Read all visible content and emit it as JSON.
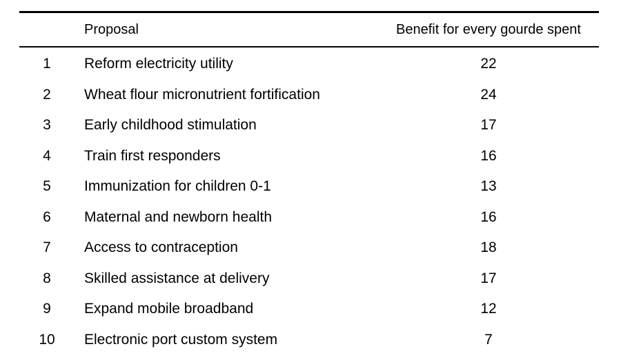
{
  "table": {
    "headers": {
      "number": "",
      "proposal": "Proposal",
      "benefit": "Benefit for every gourde spent"
    },
    "rows": [
      {
        "number": "1",
        "proposal": "Reform electricity utility",
        "benefit": "22"
      },
      {
        "number": "2",
        "proposal": "Wheat flour micronutrient fortification",
        "benefit": "24"
      },
      {
        "number": "3",
        "proposal": "Early childhood stimulation",
        "benefit": "17"
      },
      {
        "number": "4",
        "proposal": "Train first responders",
        "benefit": "16"
      },
      {
        "number": "5",
        "proposal": "Immunization for children 0-1",
        "benefit": "13"
      },
      {
        "number": "6",
        "proposal": "Maternal and newborn health",
        "benefit": "16"
      },
      {
        "number": "7",
        "proposal": "Access to contraception",
        "benefit": "18"
      },
      {
        "number": "8",
        "proposal": "Skilled assistance at delivery",
        "benefit": "17"
      },
      {
        "number": "9",
        "proposal": "Expand mobile broadband",
        "benefit": "12"
      },
      {
        "number": "10",
        "proposal": "Electronic port custom system",
        "benefit": "7"
      }
    ]
  }
}
